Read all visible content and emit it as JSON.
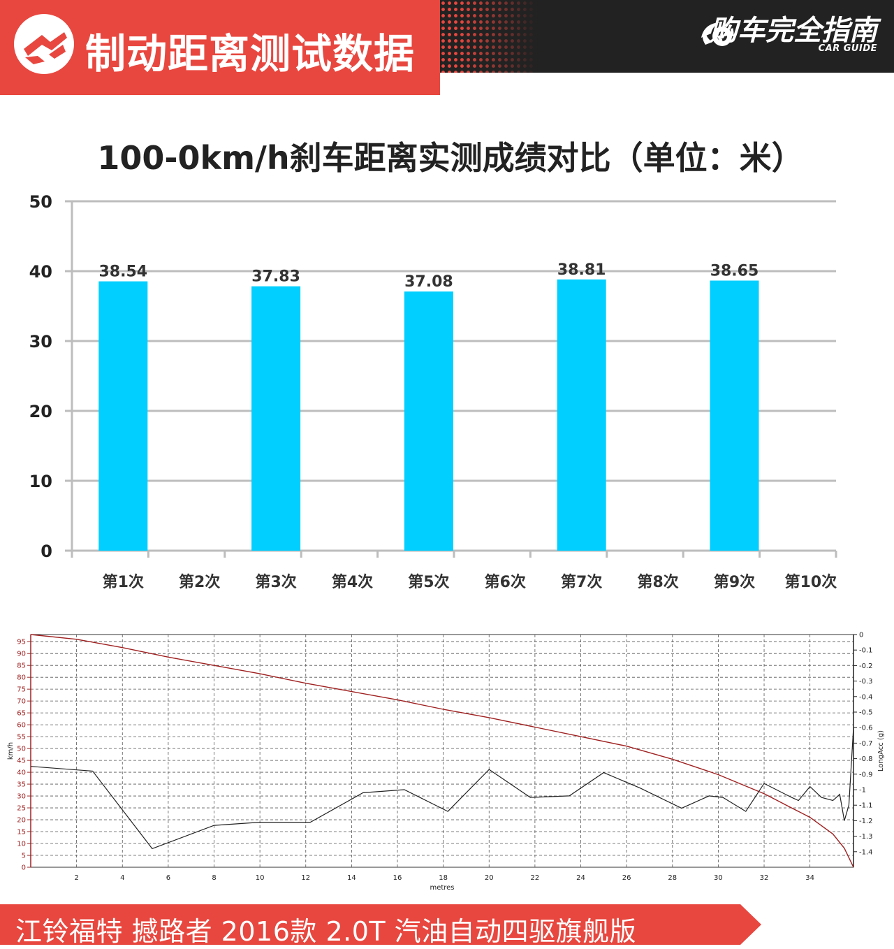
{
  "header": {
    "title": "制动距离测试数据",
    "brand_name": "购车完全指南",
    "brand_sub": "CAR GUIDE",
    "accent_color": "#e8473f",
    "dark_color": "#222222",
    "logo_icon": "brake-disc-icon",
    "brand_icon": "eye-wing-logo-icon"
  },
  "footer": {
    "caption": "江铃福特 撼路者 2016款 2.0T 汽油自动四驱旗舰版"
  },
  "chart_data": [
    {
      "type": "bar",
      "title": "100-0km/h刹车距离实测成绩对比（单位：米）",
      "categories": [
        "第1次",
        "第2次",
        "第3次",
        "第4次",
        "第5次",
        "第6次",
        "第7次",
        "第8次",
        "第9次",
        "第10次"
      ],
      "values": [
        38.54,
        null,
        37.83,
        null,
        37.08,
        null,
        38.81,
        null,
        38.65,
        null
      ],
      "value_labels": [
        "38.54",
        "",
        "37.83",
        "",
        "37.08",
        "",
        "38.81",
        "",
        "38.65",
        ""
      ],
      "ylim": [
        0,
        50
      ],
      "yticks": [
        0,
        10,
        20,
        30,
        40,
        50
      ],
      "grid": true,
      "bar_color": "#00cfff",
      "xlabel": "",
      "ylabel": ""
    },
    {
      "type": "line",
      "xlabel": "metres",
      "ylabel": "km/h",
      "y2label": "LongAcc (g)",
      "xlim": [
        0,
        35.9
      ],
      "ylim": [
        0,
        98
      ],
      "y2lim": [
        -1.5,
        0
      ],
      "xticks": [
        2,
        4,
        6,
        8,
        10,
        12,
        14,
        16,
        18,
        20,
        22,
        24,
        26,
        28,
        30,
        32,
        34
      ],
      "yticks": [
        0,
        5,
        10,
        15,
        20,
        25,
        30,
        35,
        40,
        45,
        50,
        55,
        60,
        65,
        70,
        75,
        80,
        85,
        90,
        95
      ],
      "y2ticks": [
        0,
        -0.1,
        -0.2,
        -0.3,
        -0.4,
        -0.5,
        -0.6,
        -0.7,
        -0.8,
        -0.9,
        -1,
        -1.1,
        -1.2,
        -1.3,
        -1.4
      ],
      "grid": true,
      "series": [
        {
          "axis": "left",
          "color": "#a02020",
          "x": [
            0,
            2,
            4,
            6,
            8,
            10,
            12,
            14,
            16,
            18,
            20,
            22,
            24,
            26,
            28,
            30,
            32,
            33,
            34,
            35,
            35.5,
            35.9
          ],
          "y": [
            98,
            96,
            92.5,
            88.5,
            85,
            81.5,
            77.5,
            74,
            70.5,
            66.5,
            63,
            59,
            55,
            51,
            45.5,
            39,
            31,
            26,
            21,
            14,
            8,
            0
          ]
        },
        {
          "axis": "right",
          "color": "#222222",
          "x": [
            0,
            2.7,
            5.3,
            8,
            10,
            12.2,
            14.5,
            16.3,
            18.2,
            20,
            21.8,
            23.5,
            25,
            26.6,
            28.4,
            29.6,
            30.2,
            31.2,
            32,
            33.2,
            33.5,
            34,
            34.5,
            35,
            35.3,
            35.5,
            35.7,
            35.9
          ],
          "y": [
            -0.85,
            -0.88,
            -1.38,
            -1.23,
            -1.21,
            -1.21,
            -1.02,
            -1,
            -1.14,
            -0.87,
            -1.05,
            -1.04,
            -0.89,
            -0.99,
            -1.12,
            -1.04,
            -1.05,
            -1.14,
            -0.96,
            -1.05,
            -1.07,
            -0.98,
            -1.05,
            -1.07,
            -1.03,
            -1.2,
            -1.1,
            -0.6
          ]
        }
      ]
    }
  ]
}
